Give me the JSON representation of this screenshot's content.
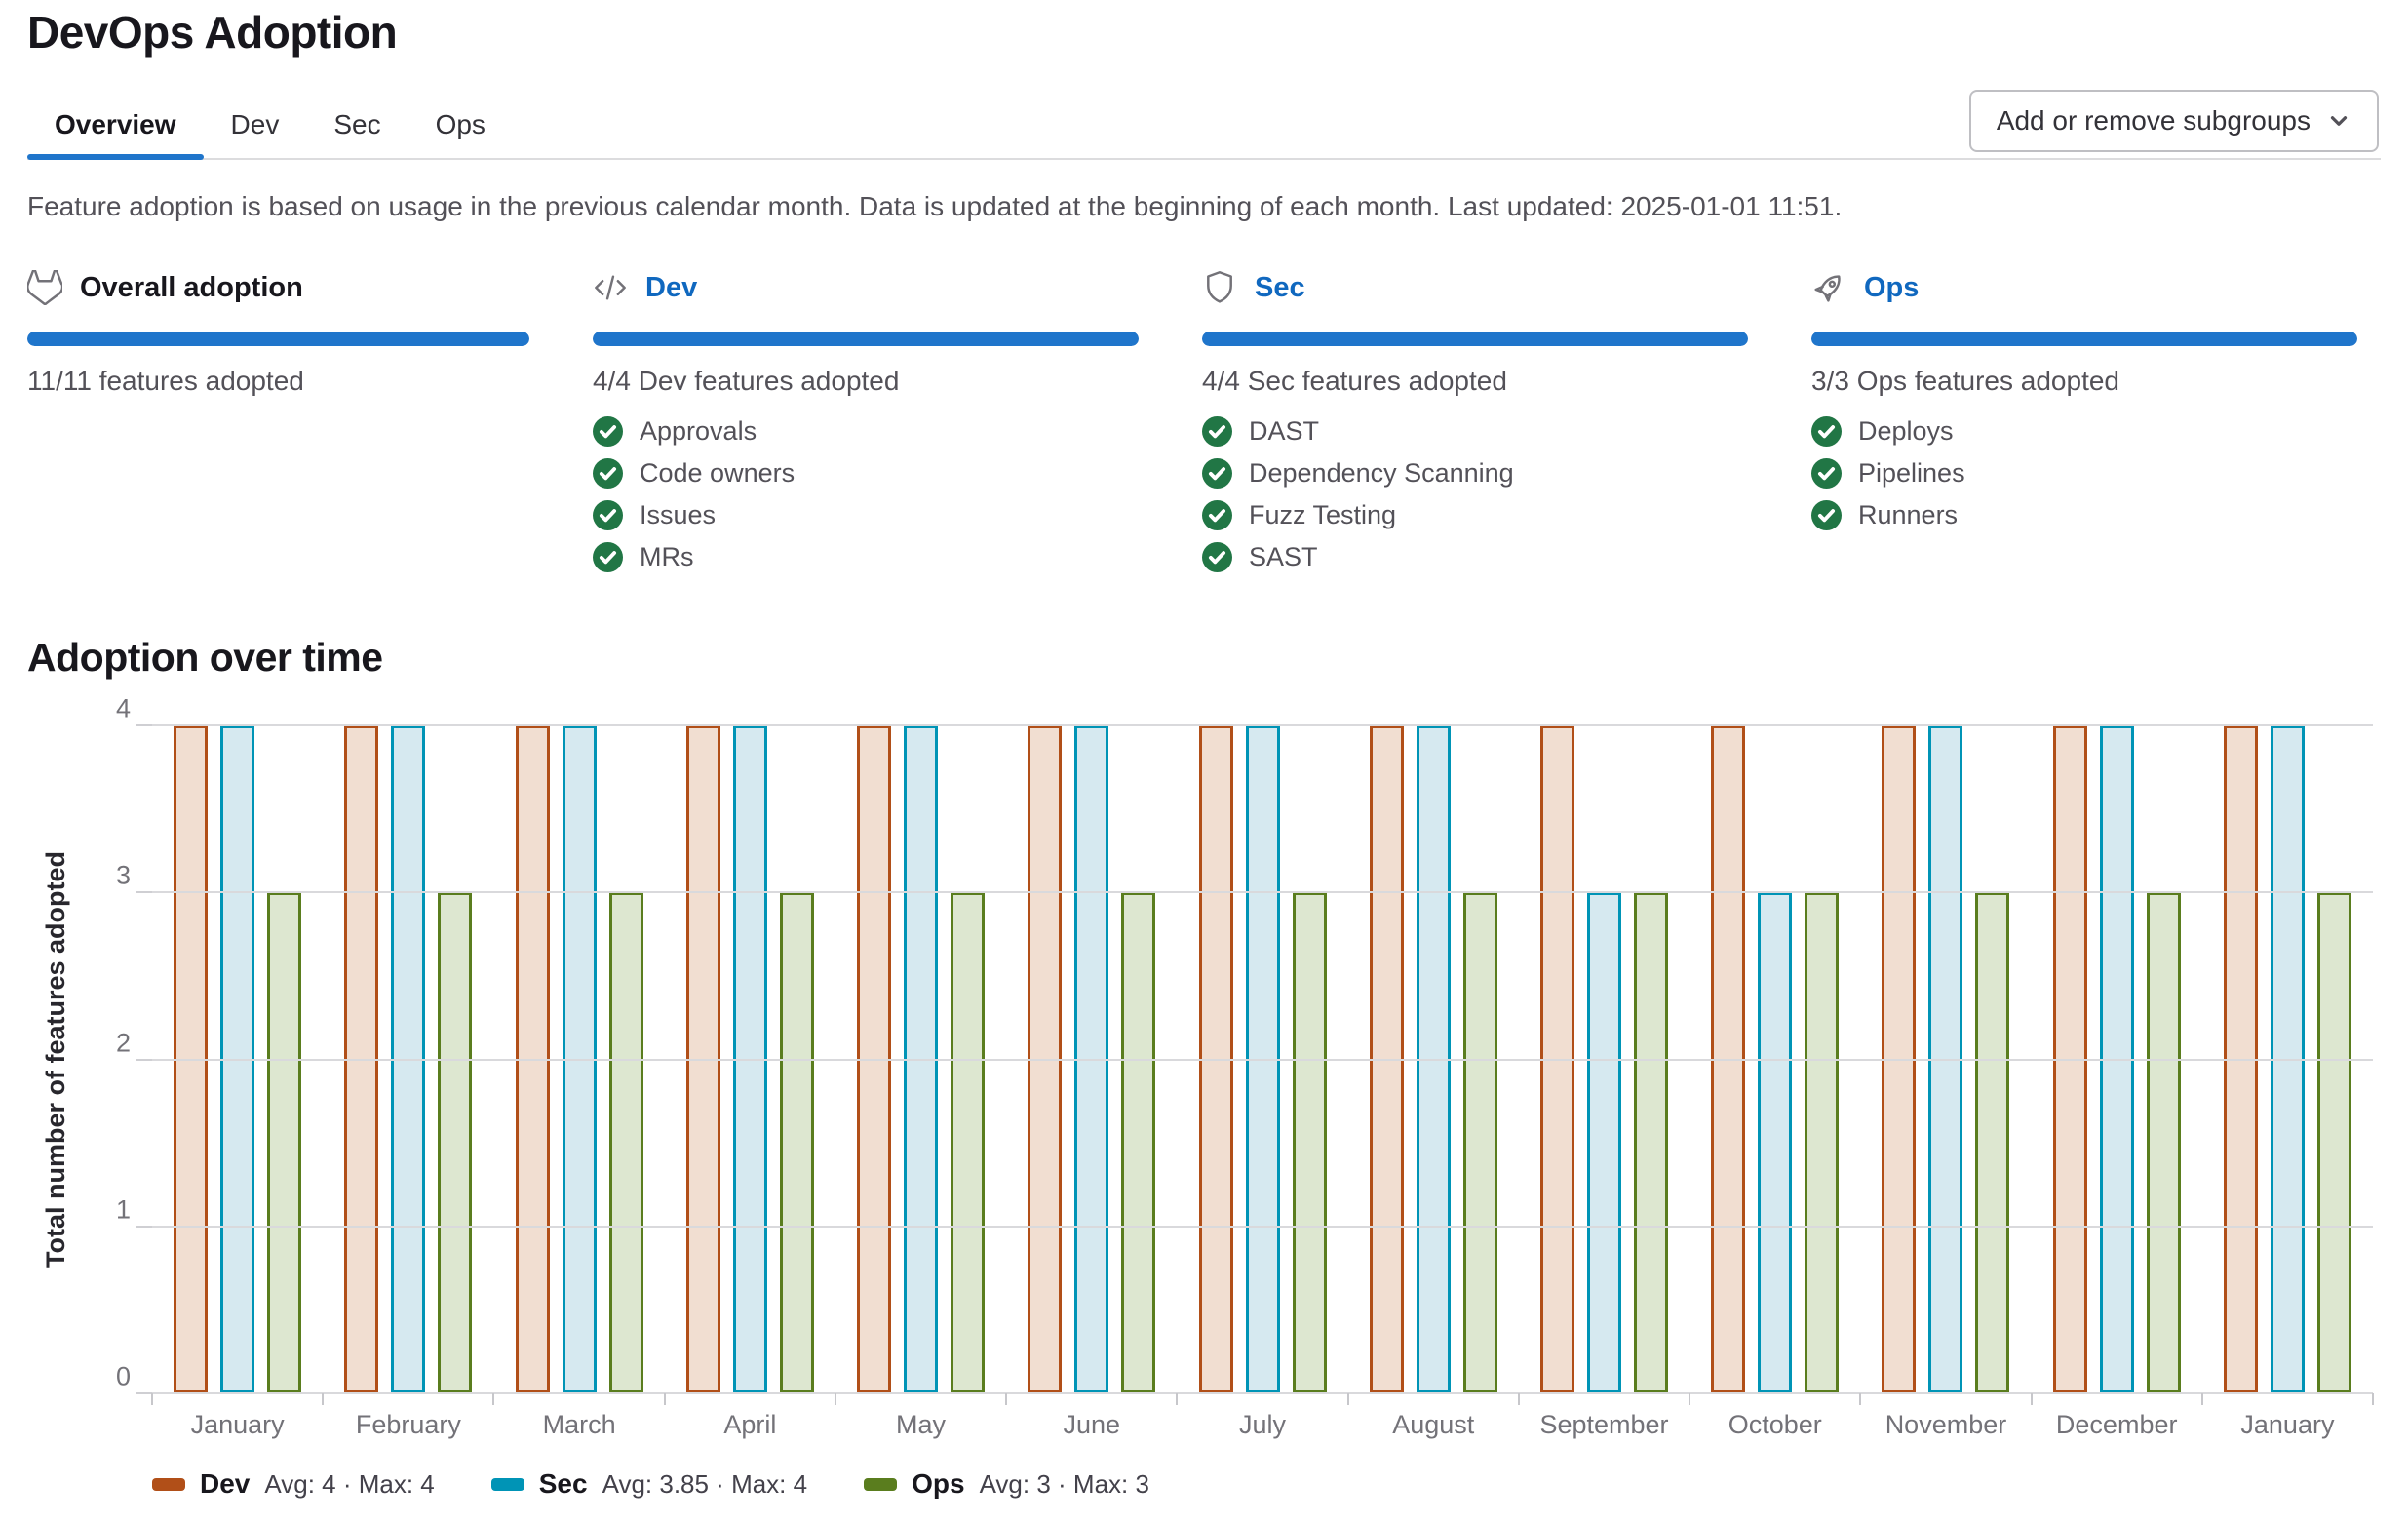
{
  "page": {
    "title": "DevOps Adoption"
  },
  "tabs": [
    {
      "label": "Overview",
      "active": true
    },
    {
      "label": "Dev",
      "active": false
    },
    {
      "label": "Sec",
      "active": false
    },
    {
      "label": "Ops",
      "active": false
    }
  ],
  "subgroups_button": {
    "label": "Add or remove subgroups"
  },
  "info_text": "Feature adoption is based on usage in the previous calendar month. Data is updated at the beginning of each month. Last updated: 2025-01-01 11:51.",
  "summary_cards": [
    {
      "icon": "tanuki-icon",
      "title": "Overall adoption",
      "is_link": false,
      "progress_percent": 100,
      "subtext": "11/11 features adopted",
      "features": []
    },
    {
      "icon": "code-icon",
      "title": "Dev",
      "is_link": true,
      "progress_percent": 100,
      "subtext": "4/4 Dev features adopted",
      "features": [
        "Approvals",
        "Code owners",
        "Issues",
        "MRs"
      ]
    },
    {
      "icon": "shield-icon",
      "title": "Sec",
      "is_link": true,
      "progress_percent": 100,
      "subtext": "4/4 Sec features adopted",
      "features": [
        "DAST",
        "Dependency Scanning",
        "Fuzz Testing",
        "SAST"
      ]
    },
    {
      "icon": "rocket-icon",
      "title": "Ops",
      "is_link": true,
      "progress_percent": 100,
      "subtext": "3/3 Ops features adopted",
      "features": [
        "Deploys",
        "Pipelines",
        "Runners"
      ]
    }
  ],
  "chart_section": {
    "title": "Adoption over time"
  },
  "chart_data": {
    "type": "bar",
    "title": "Adoption over time",
    "xlabel": "",
    "ylabel": "Total number of features adopted",
    "ylim": [
      0,
      4
    ],
    "yticks": [
      0,
      1,
      2,
      3,
      4
    ],
    "grid": true,
    "legend_position": "bottom",
    "categories": [
      "January",
      "February",
      "March",
      "April",
      "May",
      "June",
      "July",
      "August",
      "September",
      "October",
      "November",
      "December",
      "January"
    ],
    "series": [
      {
        "name": "Dev",
        "color": "#b14f18",
        "fill": "#f1ded1",
        "values": [
          4,
          4,
          4,
          4,
          4,
          4,
          4,
          4,
          4,
          4,
          4,
          4,
          4
        ],
        "legend_stats": "Avg: 4 · Max: 4"
      },
      {
        "name": "Sec",
        "color": "#0094b6",
        "fill": "#d6e9f0",
        "values": [
          4,
          4,
          4,
          4,
          4,
          4,
          4,
          4,
          3,
          3,
          4,
          4,
          4
        ],
        "legend_stats": "Avg: 3.85 · Max: 4"
      },
      {
        "name": "Ops",
        "color": "#5a7d1e",
        "fill": "#dde7d0",
        "values": [
          3,
          3,
          3,
          3,
          3,
          3,
          3,
          3,
          3,
          3,
          3,
          3,
          3
        ],
        "legend_stats": "Avg: 3 · Max: 3"
      }
    ]
  }
}
